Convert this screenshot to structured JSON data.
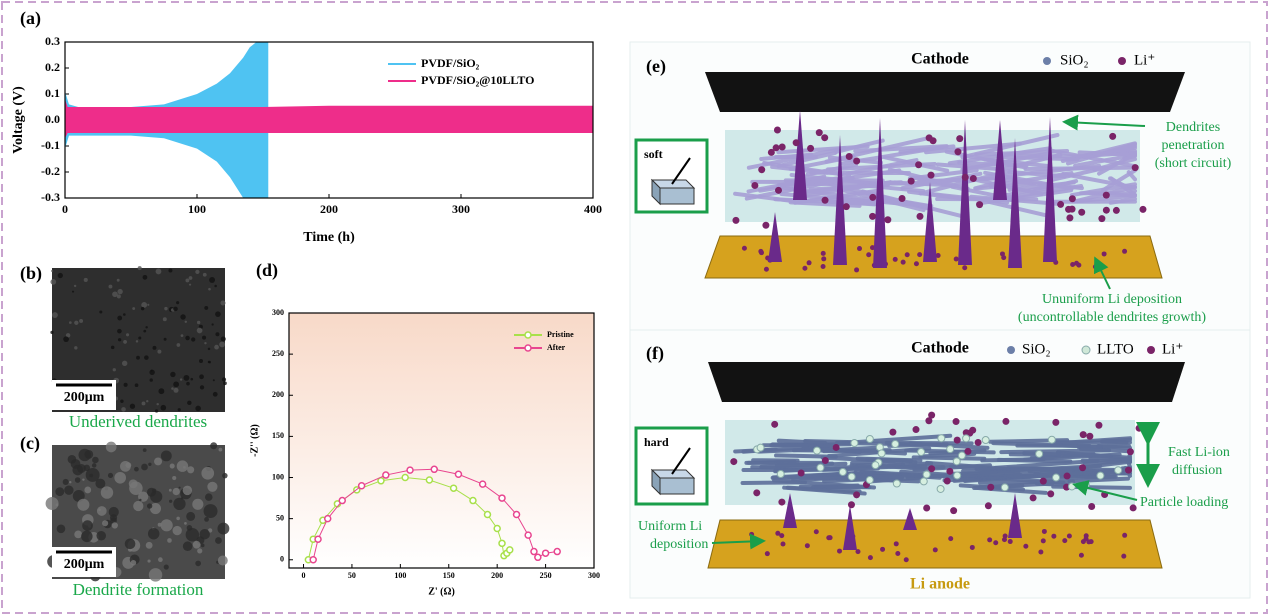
{
  "panels": {
    "a": "(a)",
    "b": "(b)",
    "c": "(c)",
    "d": "(d)",
    "e": "(e)",
    "f": "(f)"
  },
  "chart_data": [
    {
      "type": "line",
      "xlabel": "Time (h)",
      "ylabel": "Voltage (V)",
      "legend": "upper right",
      "xlim": [
        0,
        400
      ],
      "xticks": [
        0,
        100,
        200,
        300,
        400
      ],
      "ylim": [
        -0.3,
        0.3
      ],
      "yticks": [
        -0.3,
        -0.2,
        -0.1,
        {
          "value": 0,
          "label": "0.0"
        },
        0.1,
        0.2,
        0.3
      ],
      "series": [
        {
          "name": "PVDF/SiO₂",
          "color": "#4fc3f2",
          "x": [
            0,
            3,
            10,
            25,
            50,
            75,
            100,
            115,
            125,
            135,
            140,
            145,
            150,
            154
          ],
          "values": [
            0.11,
            0.06,
            0.05,
            0.05,
            0.05,
            0.06,
            0.1,
            0.14,
            0.18,
            0.24,
            0.28,
            0.3,
            0.3,
            0.3
          ],
          "lower": [
            -0.11,
            -0.06,
            -0.06,
            -0.06,
            -0.06,
            -0.07,
            -0.11,
            -0.16,
            -0.22,
            -0.3,
            -0.3,
            -0.3,
            -0.3,
            -0.3
          ]
        },
        {
          "name": "PVDF/SiO₂@10LLTO",
          "color": "#ee2d8a",
          "x": [
            0,
            2,
            10,
            50,
            100,
            150,
            200,
            250,
            300,
            350,
            400
          ],
          "values": [
            0.08,
            0.05,
            0.05,
            0.05,
            0.05,
            0.05,
            0.055,
            0.055,
            0.055,
            0.055,
            0.055
          ],
          "lower": [
            -0.07,
            -0.05,
            -0.05,
            -0.05,
            -0.05,
            -0.05,
            -0.05,
            -0.05,
            -0.05,
            -0.05,
            -0.05
          ]
        }
      ]
    },
    {
      "type": "line",
      "markers": true,
      "xlabel": "Z' (Ω)",
      "ylabel": "-Z'' (Ω)",
      "legend": "upper right",
      "xlim": [
        -15,
        300
      ],
      "xticks": [
        0,
        50,
        100,
        150,
        200,
        250,
        300
      ],
      "ylim": [
        -10,
        300
      ],
      "yticks": [
        0,
        50,
        100,
        150,
        200,
        250,
        300
      ],
      "series": [
        {
          "name": "Pristine",
          "color": "#a8e04a",
          "x": [
            5,
            10,
            20,
            35,
            55,
            80,
            105,
            130,
            155,
            175,
            190,
            200,
            205,
            207,
            210,
            213
          ],
          "values": [
            0,
            25,
            48,
            68,
            85,
            96,
            100,
            97,
            87,
            72,
            55,
            38,
            20,
            5,
            8,
            12
          ]
        },
        {
          "name": "After",
          "color": "#e8458f",
          "x": [
            10,
            15,
            25,
            40,
            60,
            85,
            110,
            135,
            160,
            185,
            205,
            220,
            232,
            238,
            242,
            250,
            262
          ],
          "values": [
            0,
            25,
            50,
            72,
            90,
            103,
            109,
            110,
            104,
            92,
            75,
            55,
            30,
            10,
            3,
            8,
            10
          ]
        }
      ]
    }
  ],
  "sem_images": [
    {
      "scale_bar": "200μm",
      "caption": "Underived dendrites"
    },
    {
      "scale_bar": "200μm",
      "caption": "Dendrite formation"
    }
  ],
  "schematic_e": {
    "cathode": "Cathode",
    "legend": [
      "SiO₂",
      "Li⁺"
    ],
    "material": "soft",
    "annotations": [
      [
        "Dendrites",
        "penetration",
        "(short circuit)"
      ],
      [
        "Ununiform Li deposition",
        "(uncontrollable dendrites growth)"
      ]
    ]
  },
  "schematic_f": {
    "cathode": "Cathode",
    "legend": [
      "SiO₂",
      "LLTO",
      "Li⁺"
    ],
    "material": "hard",
    "annotations": [
      [
        "Fast Li-ion",
        "diffusion"
      ],
      [
        "Particle loading"
      ],
      [
        "Uniform Li",
        "deposition"
      ]
    ],
    "anode": "Li anode"
  }
}
